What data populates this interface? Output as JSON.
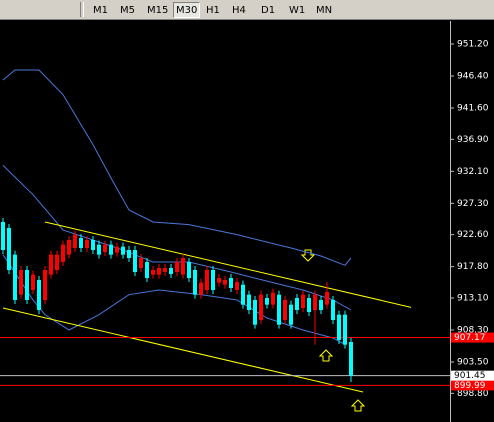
{
  "toolbar": {
    "buttons": [
      "M1",
      "M5",
      "M15",
      "M30",
      "H1",
      "H4",
      "D1",
      "W1",
      "MN"
    ],
    "selected": 3
  },
  "chart_data": {
    "type": "candlestick",
    "ylim": [
      894.5,
      954.8
    ],
    "yticks": [
      {
        "value": 951.2,
        "label": "951.20"
      },
      {
        "value": 946.4,
        "label": "946.40"
      },
      {
        "value": 941.6,
        "label": "941.60"
      },
      {
        "value": 936.9,
        "label": "936.90"
      },
      {
        "value": 932.1,
        "label": "932.10"
      },
      {
        "value": 927.3,
        "label": "927.30"
      },
      {
        "value": 922.6,
        "label": "922.60"
      },
      {
        "value": 917.8,
        "label": "917.80"
      },
      {
        "value": 913.1,
        "label": "913.10"
      },
      {
        "value": 908.3,
        "label": "908.30"
      },
      {
        "value": 903.5,
        "label": "903.50"
      },
      {
        "value": 898.8,
        "label": "898.80"
      }
    ],
    "up_color": "#ff0000",
    "down_color": "#00ffff",
    "band_color": "#4a78d8",
    "trend_color": "#ffff00",
    "ohlc": [
      [
        924.5,
        925.1,
        919.7,
        920.3
      ],
      [
        923.6,
        924.2,
        916.7,
        917.3
      ],
      [
        919.6,
        920.2,
        912.2,
        912.8
      ],
      [
        913.6,
        917.9,
        913.0,
        917.3
      ],
      [
        917.3,
        917.9,
        912.2,
        912.8
      ],
      [
        914.3,
        917.2,
        913.7,
        916.6
      ],
      [
        915.8,
        916.4,
        910.7,
        911.3
      ],
      [
        912.8,
        917.9,
        912.2,
        917.3
      ],
      [
        916.6,
        920.2,
        916.0,
        919.6
      ],
      [
        917.3,
        920.2,
        916.7,
        919.6
      ],
      [
        918.5,
        921.7,
        917.9,
        921.1
      ],
      [
        919.6,
        922.4,
        919.0,
        921.8
      ],
      [
        920.6,
        923.2,
        920.0,
        922.6
      ],
      [
        922.1,
        922.7,
        920.0,
        920.6
      ],
      [
        920.6,
        922.4,
        920.0,
        921.8
      ],
      [
        921.8,
        922.4,
        919.7,
        920.3
      ],
      [
        921.1,
        921.7,
        919.0,
        919.6
      ],
      [
        920.0,
        921.7,
        919.4,
        921.1
      ],
      [
        921.1,
        921.7,
        919.0,
        919.6
      ],
      [
        919.9,
        921.4,
        919.3,
        920.8
      ],
      [
        920.8,
        921.4,
        919.0,
        919.6
      ],
      [
        920.3,
        920.9,
        918.5,
        919.1
      ],
      [
        920.3,
        920.9,
        916.4,
        917.0
      ],
      [
        917.6,
        919.7,
        917.0,
        919.1
      ],
      [
        918.5,
        919.1,
        915.5,
        916.1
      ],
      [
        916.6,
        917.9,
        916.0,
        917.3
      ],
      [
        916.6,
        918.2,
        916.0,
        917.6
      ],
      [
        917.0,
        918.2,
        916.4,
        917.6
      ],
      [
        917.6,
        918.2,
        916.1,
        916.7
      ],
      [
        917.0,
        919.1,
        916.4,
        918.5
      ],
      [
        916.6,
        919.7,
        916.0,
        919.1
      ],
      [
        918.5,
        919.1,
        915.5,
        916.1
      ],
      [
        917.3,
        917.9,
        913.0,
        913.6
      ],
      [
        913.6,
        916.0,
        913.0,
        915.4
      ],
      [
        914.3,
        917.9,
        913.7,
        917.3
      ],
      [
        917.3,
        917.9,
        913.7,
        914.3
      ],
      [
        915.4,
        916.7,
        914.8,
        916.1
      ],
      [
        915.1,
        916.4,
        914.5,
        915.8
      ],
      [
        916.1,
        916.7,
        914.0,
        914.6
      ],
      [
        914.3,
        916.1,
        913.7,
        915.5
      ],
      [
        915.1,
        915.7,
        911.5,
        912.1
      ],
      [
        913.6,
        914.2,
        910.7,
        911.3
      ],
      [
        912.8,
        913.4,
        908.5,
        909.1
      ],
      [
        909.8,
        914.2,
        909.2,
        913.6
      ],
      [
        913.1,
        913.7,
        911.5,
        912.1
      ],
      [
        912.1,
        914.5,
        911.5,
        913.9
      ],
      [
        913.6,
        914.2,
        908.5,
        909.1
      ],
      [
        909.8,
        913.4,
        909.2,
        912.8
      ],
      [
        912.1,
        912.7,
        908.5,
        909.1
      ],
      [
        913.1,
        913.7,
        910.7,
        911.3
      ],
      [
        911.6,
        914.2,
        911.0,
        913.6
      ],
      [
        913.1,
        913.7,
        910.4,
        911.0
      ],
      [
        911.3,
        914.2,
        906.1,
        913.6
      ],
      [
        912.8,
        913.4,
        910.7,
        911.3
      ],
      [
        912.1,
        915.5,
        911.5,
        914.0
      ],
      [
        912.8,
        913.4,
        909.2,
        909.8
      ],
      [
        910.6,
        911.2,
        906.2,
        906.8
      ],
      [
        910.6,
        911.2,
        905.5,
        906.1
      ],
      [
        906.5,
        907.1,
        900.5,
        901.45
      ]
    ],
    "bands": [
      {
        "x": [
          0,
          2,
          6,
          10,
          15,
          18,
          21,
          25,
          31,
          39,
          48,
          53,
          57,
          58
        ],
        "values": [
          945.8,
          947.3,
          947.3,
          943.6,
          936.1,
          931.1,
          926.3,
          924.5,
          924.1,
          922.6,
          920.6,
          919.4,
          918.0,
          919.1
        ]
      },
      {
        "x": [
          0,
          5,
          10,
          15,
          20,
          25,
          31,
          38,
          45,
          50,
          55,
          58
        ],
        "values": [
          933.0,
          928.6,
          923.3,
          921.8,
          920.3,
          918.5,
          918.5,
          917.0,
          915.4,
          914.3,
          912.8,
          911.3
        ]
      },
      {
        "x": [
          0,
          5,
          7,
          11,
          16,
          21,
          26,
          33,
          39,
          44,
          50,
          55,
          57
        ],
        "values": [
          919.6,
          912.8,
          910.6,
          908.3,
          910.6,
          913.6,
          914.3,
          913.6,
          912.8,
          910.1,
          908.3,
          907.1,
          906.1
        ]
      }
    ],
    "trendlines": [
      {
        "x": [
          7,
          68
        ],
        "values": [
          924.5,
          911.7
        ]
      },
      {
        "x": [
          0,
          60
        ],
        "values": [
          911.6,
          899.0
        ]
      }
    ],
    "levels": [
      {
        "value": 907.17,
        "color": "#ff0000"
      },
      {
        "value": 899.99,
        "color": "#ff0000"
      }
    ],
    "bid": {
      "value": 901.45,
      "color": "#c0c0c0"
    }
  }
}
